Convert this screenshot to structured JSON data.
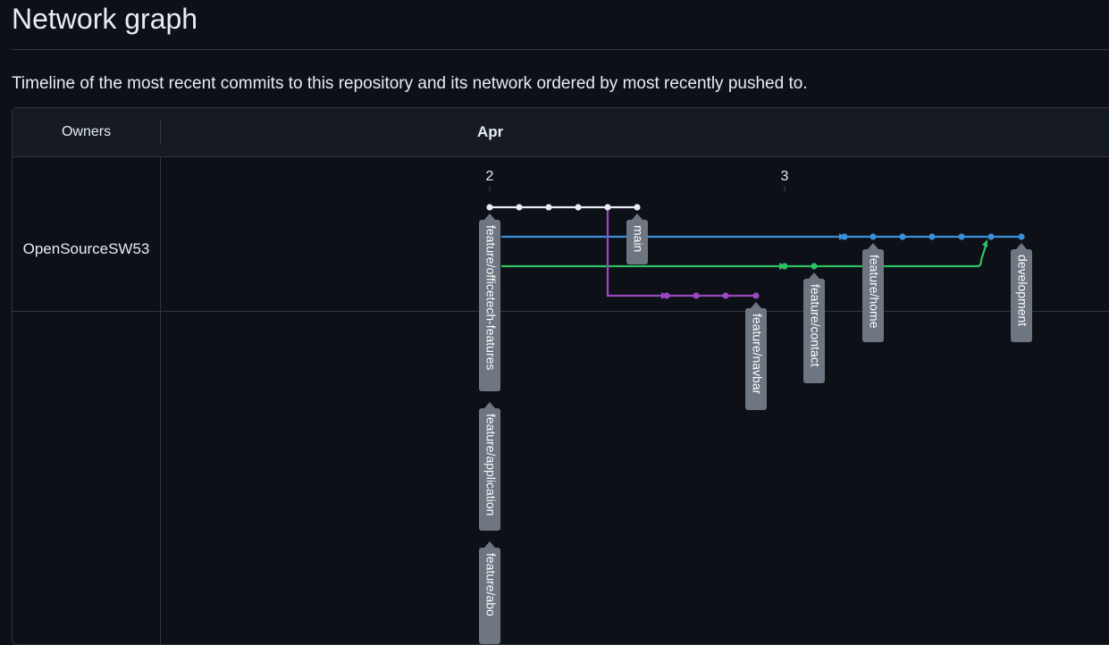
{
  "page": {
    "title": "Network graph",
    "description": "Timeline of the most recent commits to this repository and its network ordered by most recently pushed to."
  },
  "graph": {
    "owners_header": "Owners",
    "month": "Apr",
    "days": [
      "2",
      "3"
    ],
    "owners": [
      "OpenSourceSW53"
    ],
    "colors": {
      "main": "#e6edf3",
      "development": "#3b8fd9",
      "feature_contact": "#2fbf62",
      "feature_navbar": "#9b47c2",
      "label_bg": "#6e7681",
      "label_text": "#ffffff"
    },
    "branch_labels": [
      "main",
      "development",
      "feature/home",
      "feature/contact",
      "feature/navbar",
      "feature/officetech-features",
      "feature/application",
      "feature/abo"
    ]
  }
}
